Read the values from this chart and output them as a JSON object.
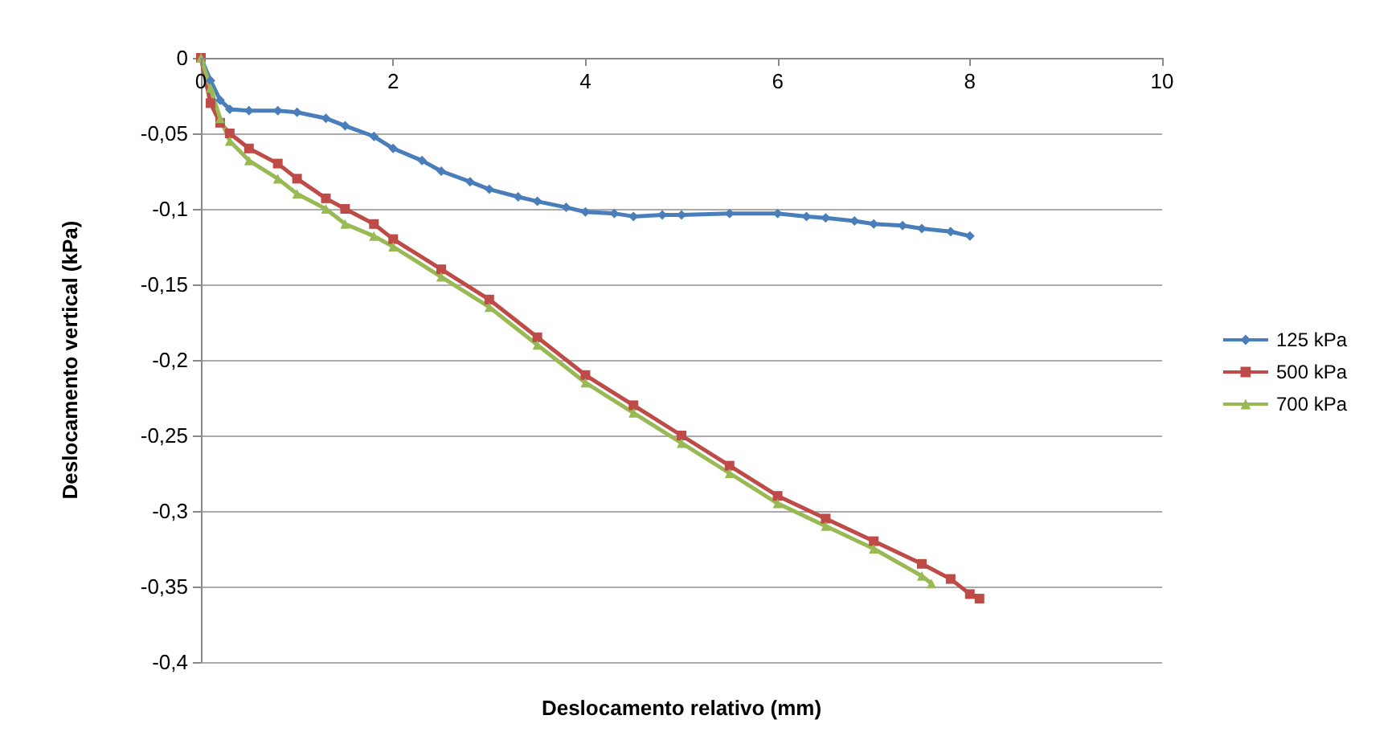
{
  "chart_data": {
    "type": "line",
    "xlabel": "Deslocamento relativo (mm)",
    "ylabel": "Deslocamento vertical (kPa)",
    "xlim": [
      0,
      10
    ],
    "xticks": [
      0,
      2,
      4,
      6,
      8,
      10
    ],
    "ylim": [
      -0.4,
      0
    ],
    "yticks": [
      {
        "value": 0,
        "label": "0"
      },
      {
        "value": -0.05,
        "label": "-0,05"
      },
      {
        "value": -0.1,
        "label": "-0,1"
      },
      {
        "value": -0.15,
        "label": "-0,15"
      },
      {
        "value": -0.2,
        "label": "-0,2"
      },
      {
        "value": -0.25,
        "label": "-0,25"
      },
      {
        "value": -0.3,
        "label": "-0,3"
      },
      {
        "value": -0.35,
        "label": "-0,35"
      },
      {
        "value": -0.4,
        "label": "-0,4"
      }
    ],
    "grid": "y",
    "legend": "right",
    "series": [
      {
        "name": "125 kPa",
        "color": "#4a7ebb",
        "marker": "diamond",
        "x": [
          0,
          0.1,
          0.2,
          0.3,
          0.5,
          0.8,
          1,
          1.3,
          1.5,
          1.8,
          2,
          2.3,
          2.5,
          2.8,
          3,
          3.3,
          3.5,
          3.8,
          4,
          4.3,
          4.5,
          4.8,
          5,
          5.5,
          6,
          6.3,
          6.5,
          6.8,
          7,
          7.3,
          7.5,
          7.8,
          8
        ],
        "values": [
          0,
          -0.015,
          -0.028,
          -0.034,
          -0.035,
          -0.035,
          -0.036,
          -0.04,
          -0.045,
          -0.052,
          -0.06,
          -0.068,
          -0.075,
          -0.082,
          -0.087,
          -0.092,
          -0.095,
          -0.099,
          -0.102,
          -0.103,
          -0.105,
          -0.104,
          -0.104,
          -0.103,
          -0.103,
          -0.105,
          -0.106,
          -0.108,
          -0.11,
          -0.111,
          -0.113,
          -0.115,
          -0.118
        ]
      },
      {
        "name": "500 kPa",
        "color": "#be4b48",
        "marker": "square",
        "x": [
          0,
          0.1,
          0.2,
          0.3,
          0.5,
          0.8,
          1,
          1.3,
          1.5,
          1.8,
          2,
          2.5,
          3,
          3.5,
          4,
          4.5,
          5,
          5.5,
          6,
          6.5,
          7,
          7.5,
          7.8,
          8,
          8.1
        ],
        "values": [
          0,
          -0.03,
          -0.043,
          -0.05,
          -0.06,
          -0.07,
          -0.08,
          -0.093,
          -0.1,
          -0.11,
          -0.12,
          -0.14,
          -0.16,
          -0.185,
          -0.21,
          -0.23,
          -0.25,
          -0.27,
          -0.29,
          -0.305,
          -0.32,
          -0.335,
          -0.345,
          -0.355,
          -0.358
        ]
      },
      {
        "name": "700 kPa",
        "color": "#98b954",
        "marker": "triangle",
        "x": [
          0,
          0.1,
          0.2,
          0.3,
          0.5,
          0.8,
          1,
          1.3,
          1.5,
          1.8,
          2,
          2.5,
          3,
          3.5,
          4,
          4.5,
          5,
          5.5,
          6,
          6.5,
          7,
          7.5,
          7.6
        ],
        "values": [
          0,
          -0.02,
          -0.04,
          -0.055,
          -0.068,
          -0.08,
          -0.09,
          -0.1,
          -0.11,
          -0.118,
          -0.125,
          -0.145,
          -0.165,
          -0.19,
          -0.215,
          -0.235,
          -0.255,
          -0.275,
          -0.295,
          -0.31,
          -0.325,
          -0.343,
          -0.348
        ]
      }
    ]
  }
}
